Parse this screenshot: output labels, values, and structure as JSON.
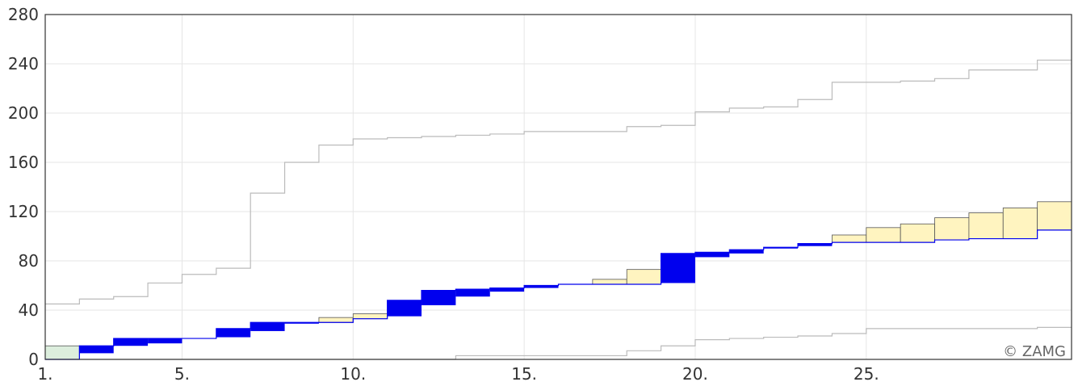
{
  "chart_data": {
    "type": "line",
    "title": "",
    "xlabel": "",
    "ylabel": "",
    "xlim": [
      1,
      31
    ],
    "ylim": [
      0,
      280
    ],
    "grid": true,
    "x_tick_labels": [
      {
        "x": 1,
        "label": "1."
      },
      {
        "x": 5,
        "label": "5."
      },
      {
        "x": 10,
        "label": "10."
      },
      {
        "x": 15,
        "label": "15."
      },
      {
        "x": 20,
        "label": "20."
      },
      {
        "x": 25,
        "label": "25."
      }
    ],
    "y_tick_labels": [
      {
        "y": 0,
        "label": "0"
      },
      {
        "y": 40,
        "label": "40"
      },
      {
        "y": 80,
        "label": "80"
      },
      {
        "y": 120,
        "label": "120"
      },
      {
        "y": 160,
        "label": "160"
      },
      {
        "y": 200,
        "label": "200"
      },
      {
        "y": 240,
        "label": "240"
      },
      {
        "y": 280,
        "label": "280"
      }
    ],
    "days": [
      1,
      2,
      3,
      4,
      5,
      6,
      7,
      8,
      9,
      10,
      11,
      12,
      13,
      14,
      15,
      16,
      17,
      18,
      19,
      20,
      21,
      22,
      23,
      24,
      25,
      26,
      27,
      28,
      29,
      30
    ],
    "series": [
      {
        "values": [
          0,
          11,
          17,
          17,
          17,
          25,
          30,
          30,
          30,
          33,
          48,
          56,
          57,
          58,
          60,
          61,
          61,
          61,
          86,
          87,
          89,
          91,
          94,
          95,
          95,
          95,
          97,
          98,
          98,
          105
        ],
        "color": "#0000ee"
      },
      {
        "values": [
          11,
          5,
          11,
          13,
          17,
          18,
          23,
          29,
          34,
          37,
          35,
          44,
          51,
          55,
          58,
          61,
          65,
          73,
          62,
          83,
          86,
          90,
          92,
          101,
          107,
          110,
          115,
          119,
          123,
          128
        ],
        "color": "#808080"
      },
      {
        "values": [
          45,
          49,
          51,
          62,
          69,
          74,
          135,
          160,
          174,
          179,
          180,
          181,
          182,
          183,
          185,
          185,
          185,
          189,
          190,
          201,
          204,
          205,
          211,
          225,
          225,
          226,
          228,
          235,
          235,
          243
        ],
        "color": "#bbbbbb"
      },
      {
        "values": [
          0,
          0,
          0,
          0,
          0,
          0,
          0,
          0,
          0,
          0,
          0,
          0,
          3,
          3,
          3,
          3,
          3,
          7,
          11,
          16,
          17,
          18,
          19,
          21,
          25,
          25,
          25,
          25,
          25,
          26
        ],
        "color": "#bbbbbb"
      }
    ],
    "fill_above_color": "#0000ee",
    "fill_below_color_dry": "#fff4c0",
    "fill_below_color_wet": "#dceedd",
    "credit": "© ZAMG"
  }
}
